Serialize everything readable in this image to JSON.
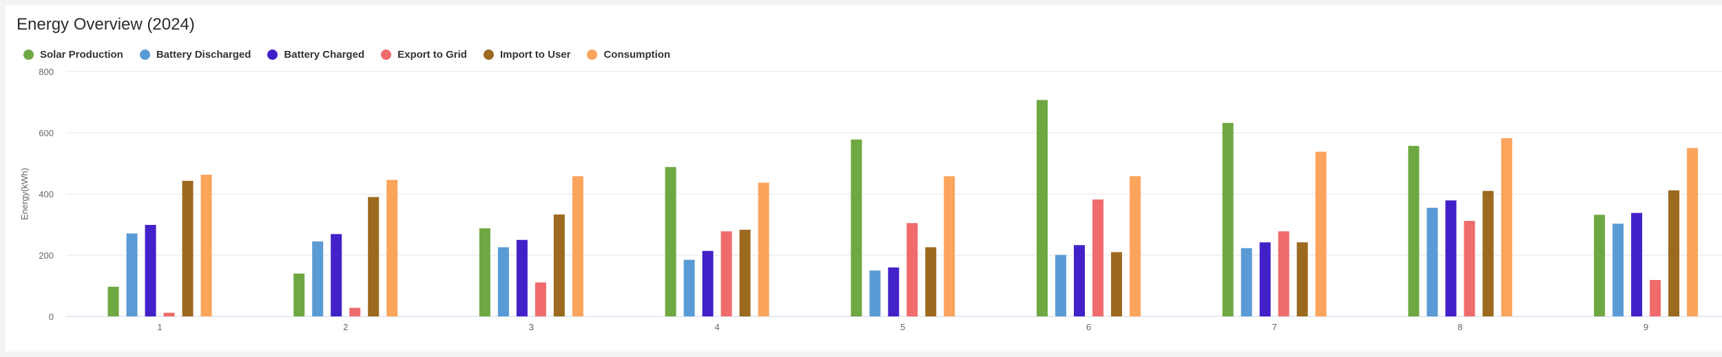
{
  "title": "Energy Overview (2024)",
  "chart_data": {
    "type": "bar",
    "title": "Energy Overview (2024)",
    "xlabel": "",
    "ylabel": "Energy(kWh)",
    "ylim": [
      0,
      800
    ],
    "yticks": [
      0,
      200,
      400,
      600,
      800
    ],
    "grid": true,
    "legend_position": "top-left",
    "categories": [
      "1",
      "2",
      "3",
      "4",
      "5",
      "6",
      "7",
      "8",
      "9"
    ],
    "series": [
      {
        "name": "Solar Production",
        "color": "#6fa843",
        "values": [
          97,
          140,
          288,
          488,
          578,
          707,
          632,
          557,
          332
        ]
      },
      {
        "name": "Battery Discharged",
        "color": "#5b9bd5",
        "values": [
          271,
          245,
          226,
          185,
          150,
          201,
          223,
          355,
          303
        ]
      },
      {
        "name": "Battery Charged",
        "color": "#4321c8",
        "values": [
          299,
          269,
          250,
          214,
          160,
          233,
          242,
          379,
          338
        ]
      },
      {
        "name": "Export to Grid",
        "color": "#f06b6b",
        "values": [
          12,
          28,
          111,
          278,
          305,
          382,
          278,
          312,
          119
        ]
      },
      {
        "name": "Import to User",
        "color": "#9b6a1f",
        "values": [
          443,
          390,
          333,
          283,
          226,
          210,
          242,
          410,
          412
        ]
      },
      {
        "name": "Consumption",
        "color": "#fba45c",
        "values": [
          463,
          446,
          458,
          437,
          458,
          458,
          538,
          582,
          550
        ]
      }
    ]
  }
}
